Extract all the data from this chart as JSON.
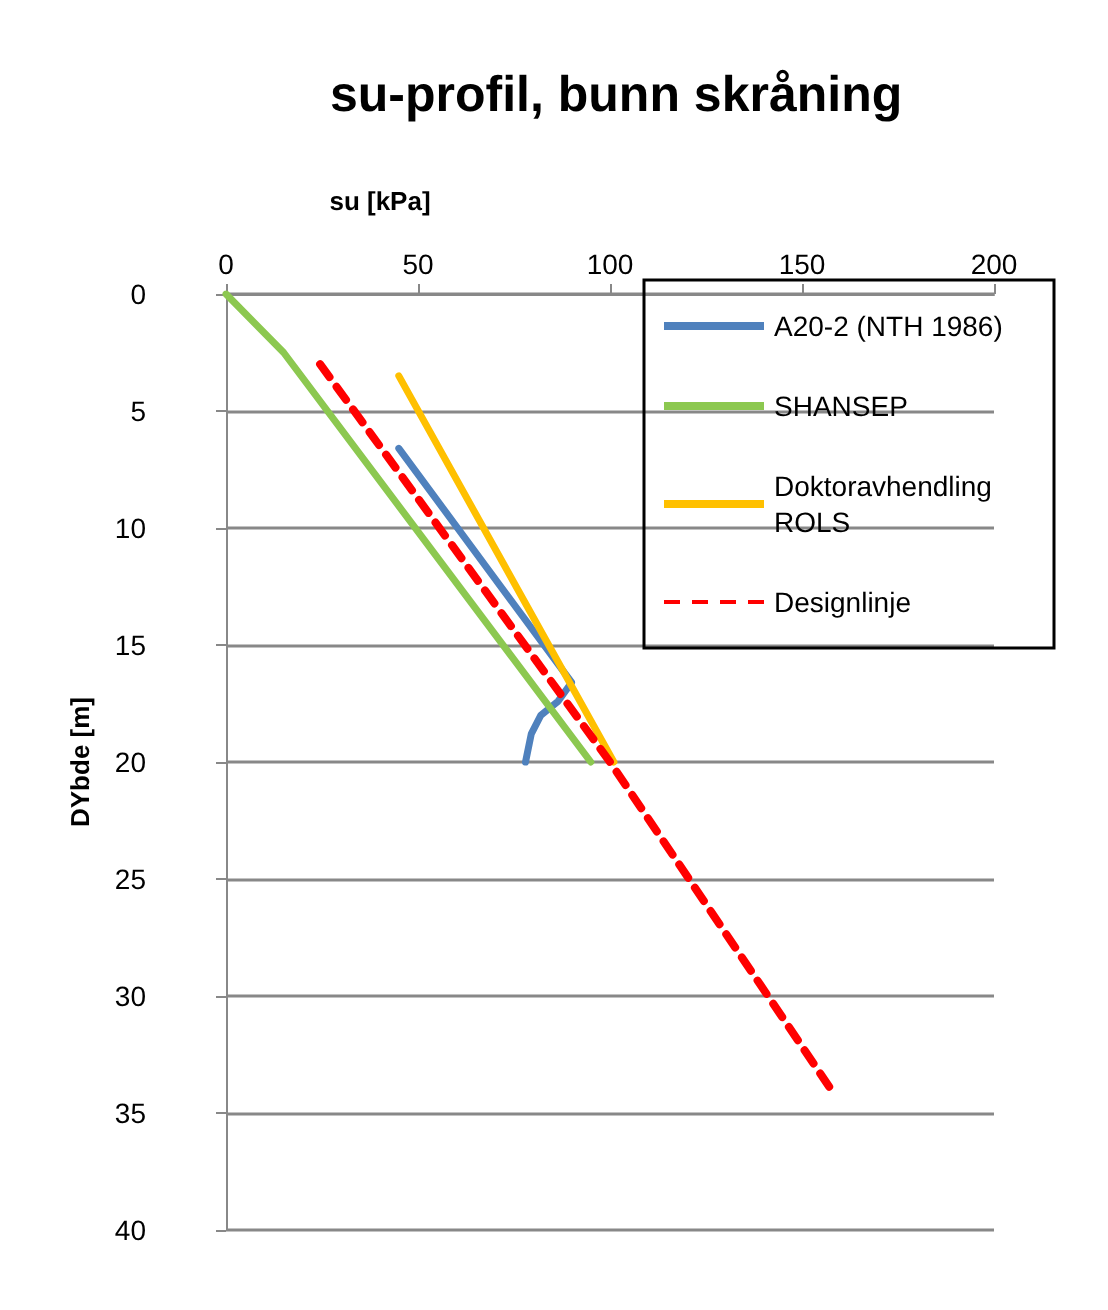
{
  "chart_data": {
    "type": "line",
    "title": "su-profil, bunn skråning",
    "xlabel": "su [kPa]",
    "ylabel": "DYbde [m]",
    "xlim": [
      0,
      200
    ],
    "xticks": [
      0,
      50,
      100,
      150,
      200
    ],
    "ylim": [
      40,
      0
    ],
    "yticks": [
      0,
      5,
      10,
      15,
      20,
      25,
      30,
      35,
      40
    ],
    "grid": "y",
    "legend": "top right",
    "marker": "none",
    "series": [
      {
        "name": "A20-2 (NTH 1986)",
        "color": "#4f81bd",
        "x": [
          45,
          90,
          86.5,
          82,
          79.5,
          78
        ],
        "values": [
          6.6,
          16.6,
          17.4,
          18,
          18.8,
          20
        ],
        "line_style": "solid"
      },
      {
        "name": "SHANSEP",
        "color": "#8cc850",
        "x": [
          0,
          15,
          95
        ],
        "values": [
          0,
          2.5,
          20
        ],
        "line_style": "solid"
      },
      {
        "name": "Doktoravhendling ROLS",
        "color": "#ffc000",
        "x": [
          45,
          101
        ],
        "values": [
          3.5,
          20
        ],
        "line_style": "solid"
      },
      {
        "name": "Designlinje",
        "color": "#ff0000",
        "x": [
          24.5,
          100,
          158
        ],
        "values": [
          3,
          20,
          34.1
        ],
        "line_style": "dashed"
      }
    ]
  }
}
